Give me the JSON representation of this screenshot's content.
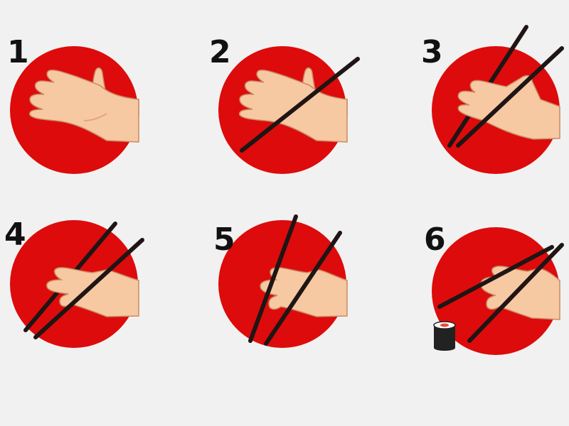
{
  "colors": {
    "background": "#f1f1f1",
    "circle": "#dd0b0b",
    "skin": "#f7c9a2",
    "skin_shadow": "#e3a57c",
    "skin_outline": "#c98a63",
    "chopstick": "#1f1515",
    "number": "#111111",
    "sushi_seaweed": "#222222",
    "sushi_rice": "#ffffff",
    "sushi_filling": "#e84a3a"
  },
  "steps": [
    {
      "number": "1",
      "chopsticks": 0,
      "icon": "open-hand-icon"
    },
    {
      "number": "2",
      "chopsticks": 1,
      "icon": "hand-one-chopstick-icon"
    },
    {
      "number": "3",
      "chopsticks": 2,
      "icon": "hand-two-chopsticks-icon"
    },
    {
      "number": "4",
      "chopsticks": 2,
      "icon": "hand-grip-chopsticks-icon"
    },
    {
      "number": "5",
      "chopsticks": 2,
      "icon": "hand-move-chopsticks-icon"
    },
    {
      "number": "6",
      "chopsticks": 2,
      "icon": "hand-pick-sushi-icon",
      "extra_icon": "sushi-roll-icon"
    }
  ]
}
